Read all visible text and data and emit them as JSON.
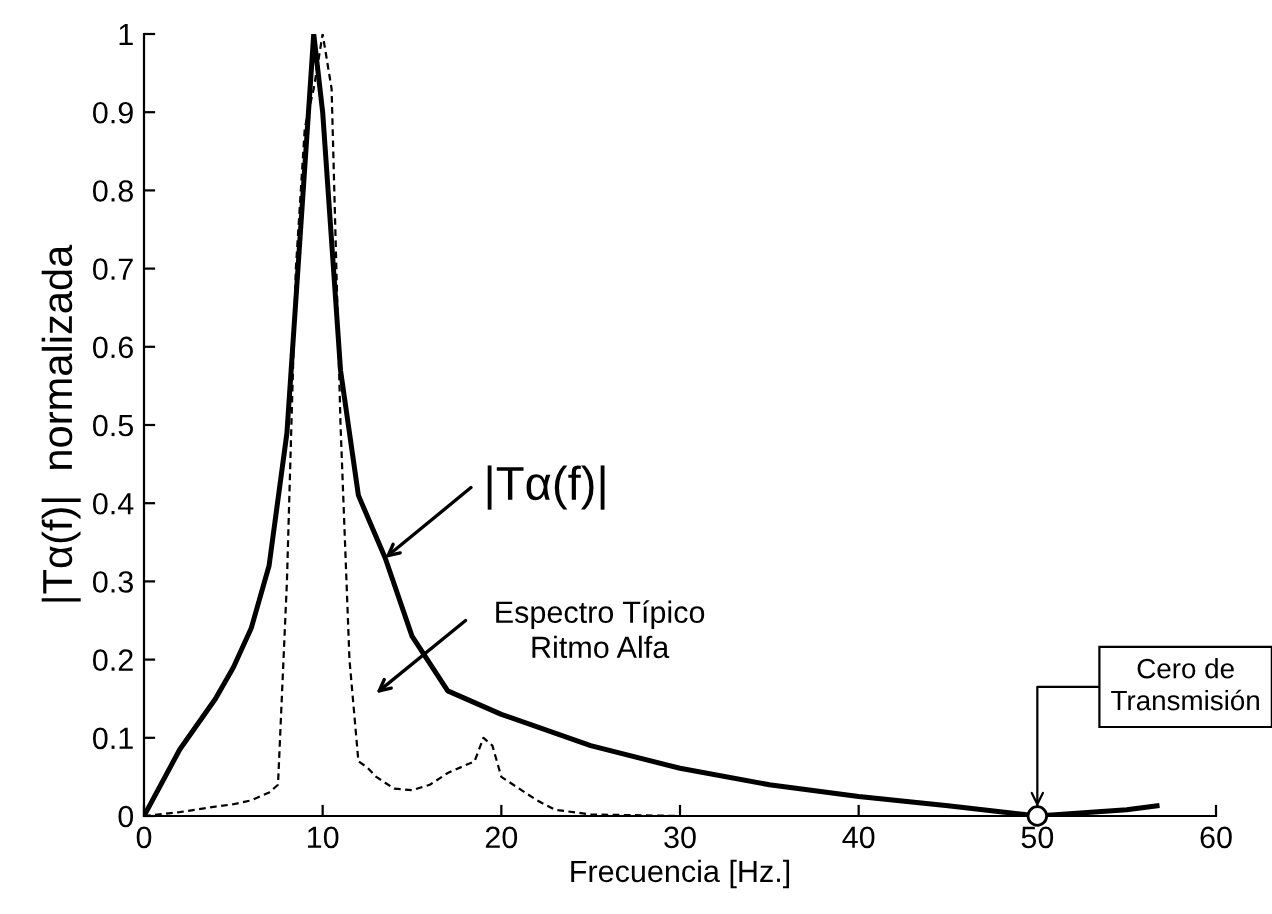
{
  "chart_data": {
    "type": "line",
    "xlabel": "Frecuencia [Hz.]",
    "ylabel": "|Tα(f)|  normalizada",
    "xlim": [
      0,
      60
    ],
    "xticks": [
      0,
      10,
      20,
      30,
      40,
      50,
      60
    ],
    "ylim": [
      0,
      1
    ],
    "yticks": [
      0,
      0.1,
      0.2,
      0.3,
      0.4,
      0.5,
      0.6,
      0.7,
      0.8,
      0.9,
      1
    ],
    "grid": false,
    "series": [
      {
        "color": "#000000",
        "line_style": "solid",
        "x": [
          0,
          2,
          4,
          5,
          6,
          7,
          8,
          9,
          9.5,
          10,
          11,
          12,
          13.5,
          15,
          17,
          20,
          25,
          30,
          35,
          40,
          45,
          50,
          55,
          56.7
        ],
        "values": [
          0,
          0.085,
          0.15,
          0.19,
          0.24,
          0.32,
          0.49,
          0.83,
          1.0,
          0.9,
          0.57,
          0.41,
          0.33,
          0.23,
          0.16,
          0.13,
          0.09,
          0.061,
          0.04,
          0.025,
          0.013,
          0,
          0.008,
          0.013
        ]
      },
      {
        "color": "#000000",
        "line_style": "dashed",
        "x": [
          0,
          2,
          4,
          5,
          6,
          7,
          7.5,
          8,
          8.5,
          9,
          9.5,
          10,
          10.5,
          11,
          11.5,
          12,
          12.5,
          13,
          14,
          15,
          16,
          17,
          18,
          18.5,
          19,
          19.5,
          20,
          21,
          22,
          23,
          25,
          30,
          40,
          50,
          56
        ],
        "values": [
          0,
          0.005,
          0.012,
          0.015,
          0.02,
          0.03,
          0.04,
          0.3,
          0.7,
          0.88,
          0.93,
          1.0,
          0.93,
          0.5,
          0.2,
          0.07,
          0.062,
          0.05,
          0.035,
          0.033,
          0.04,
          0.055,
          0.065,
          0.07,
          0.1,
          0.09,
          0.05,
          0.035,
          0.02,
          0.008,
          0.002,
          0,
          0,
          0,
          0
        ]
      },
      {
        "type": "scatter",
        "color": "#000000",
        "marker": "circle",
        "x": [
          50
        ],
        "values": [
          0
        ]
      }
    ],
    "annotations": [
      {
        "text": "|Tα(f)|",
        "x": 13.5,
        "y": 0.33
      },
      "Espectro Típico\nRitmo Alfa",
      {
        "text": "Cero de\nTransmisión",
        "x": 50,
        "y": 0
      }
    ]
  }
}
